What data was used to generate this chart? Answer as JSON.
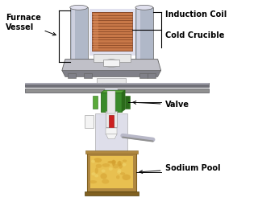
{
  "background_color": "#ffffff",
  "labels": {
    "furnace_vessel": "Furnace\nVessel",
    "induction_coil": "Induction Coil",
    "cold_crucible": "Cold Crucible",
    "valve": "Valve",
    "sodium_pool": "Sodium Pool"
  },
  "colors": {
    "steel_dark": "#606060",
    "steel_mid": "#909090",
    "steel_light": "#b8b8c8",
    "steel_lighter": "#d0d0e0",
    "steel_lightest": "#e0e0ee",
    "coil_color": "#c87848",
    "coil_shadow": "#804020",
    "coil_highlight": "#e09060",
    "green_dark": "#2a6a1a",
    "green_mid": "#3a8a2a",
    "green_light": "#5aaa3a",
    "sodium_yellow": "#e8c050",
    "sodium_orange": "#d4a030",
    "sodium_highlight": "#f0d870",
    "red_rod": "#cc2020",
    "white_part": "#f4f4f4",
    "off_white": "#e8e8e8",
    "flange_top": "#c0c0c8",
    "flange_side": "#808088",
    "plate_dark": "#505058",
    "plate_mid": "#707078",
    "tube_light": "#c8c8d8",
    "vessel_blue": "#b0b8c8",
    "vessel_dark": "#7880a0",
    "bottom_flange": "#a09070",
    "pool_wall": "#b08840",
    "pool_wall_dark": "#806020"
  },
  "figsize": [
    3.2,
    2.61
  ],
  "dpi": 100
}
